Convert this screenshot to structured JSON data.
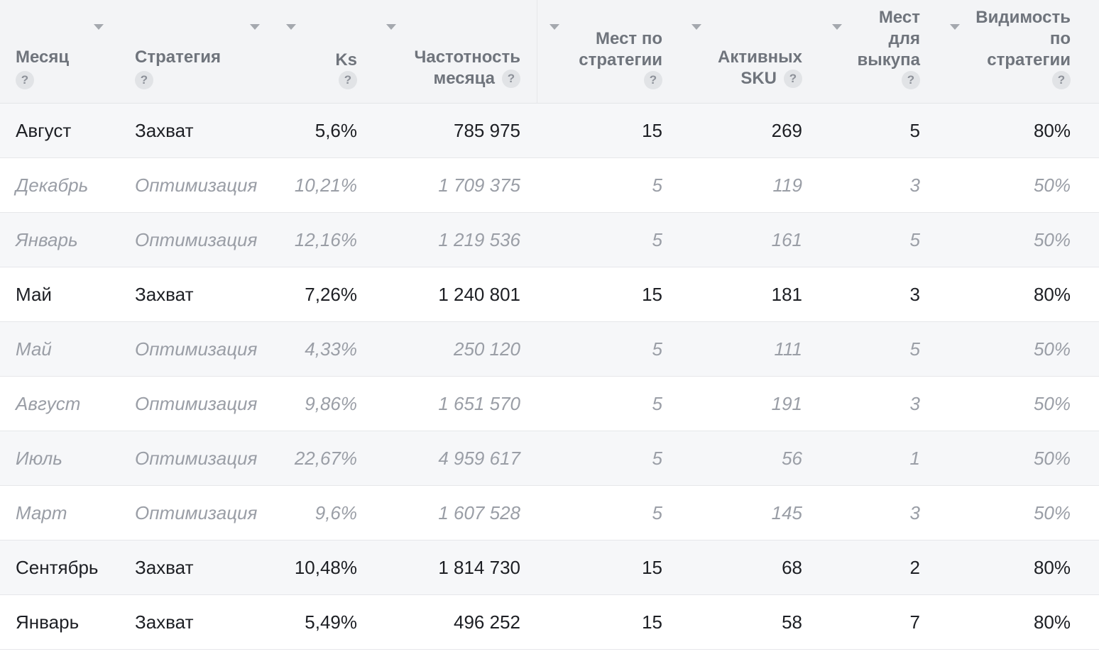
{
  "columns": [
    {
      "key": "month",
      "lines": [
        "Месяц"
      ],
      "help": "?",
      "align": "left"
    },
    {
      "key": "strategy",
      "lines": [
        "Стратегия"
      ],
      "help": "?",
      "align": "left"
    },
    {
      "key": "ks",
      "lines": [
        "Ks"
      ],
      "help": "?",
      "align": "right"
    },
    {
      "key": "frequency",
      "lines": [
        "Частотность",
        "месяца"
      ],
      "help": "?",
      "align": "right"
    },
    {
      "key": "places_by_strategy",
      "lines": [
        "Мест по",
        "стратегии"
      ],
      "help": "?",
      "align": "right"
    },
    {
      "key": "active_sku",
      "lines": [
        "Активных",
        "SKU"
      ],
      "help": "?",
      "align": "right"
    },
    {
      "key": "places_for_buyout",
      "lines": [
        "Мест",
        "для",
        "выкупа"
      ],
      "help": "?",
      "align": "right"
    },
    {
      "key": "visibility",
      "lines": [
        "Видимость",
        "по",
        "стратегии"
      ],
      "help": "?",
      "align": "right"
    }
  ],
  "rows": [
    {
      "month": "Август",
      "strategy": "Захват",
      "ks": "5,6%",
      "frequency": "785 975",
      "places_by_strategy": "15",
      "active_sku": "269",
      "places_for_buyout": "5",
      "visibility": "80%",
      "muted": false
    },
    {
      "month": "Декабрь",
      "strategy": "Оптимизация",
      "ks": "10,21%",
      "frequency": "1 709 375",
      "places_by_strategy": "5",
      "active_sku": "119",
      "places_for_buyout": "3",
      "visibility": "50%",
      "muted": true
    },
    {
      "month": "Январь",
      "strategy": "Оптимизация",
      "ks": "12,16%",
      "frequency": "1 219 536",
      "places_by_strategy": "5",
      "active_sku": "161",
      "places_for_buyout": "5",
      "visibility": "50%",
      "muted": true
    },
    {
      "month": "Май",
      "strategy": "Захват",
      "ks": "7,26%",
      "frequency": "1 240 801",
      "places_by_strategy": "15",
      "active_sku": "181",
      "places_for_buyout": "3",
      "visibility": "80%",
      "muted": false
    },
    {
      "month": "Май",
      "strategy": "Оптимизация",
      "ks": "4,33%",
      "frequency": "250 120",
      "places_by_strategy": "5",
      "active_sku": "111",
      "places_for_buyout": "5",
      "visibility": "50%",
      "muted": true
    },
    {
      "month": "Август",
      "strategy": "Оптимизация",
      "ks": "9,86%",
      "frequency": "1 651 570",
      "places_by_strategy": "5",
      "active_sku": "191",
      "places_for_buyout": "3",
      "visibility": "50%",
      "muted": true
    },
    {
      "month": "Июль",
      "strategy": "Оптимизация",
      "ks": "22,67%",
      "frequency": "4 959 617",
      "places_by_strategy": "5",
      "active_sku": "56",
      "places_for_buyout": "1",
      "visibility": "50%",
      "muted": true
    },
    {
      "month": "Март",
      "strategy": "Оптимизация",
      "ks": "9,6%",
      "frequency": "1 607 528",
      "places_by_strategy": "5",
      "active_sku": "145",
      "places_for_buyout": "3",
      "visibility": "50%",
      "muted": true
    },
    {
      "month": "Сентябрь",
      "strategy": "Захват",
      "ks": "10,48%",
      "frequency": "1 814 730",
      "places_by_strategy": "15",
      "active_sku": "68",
      "places_for_buyout": "2",
      "visibility": "80%",
      "muted": false
    },
    {
      "month": "Январь",
      "strategy": "Захват",
      "ks": "5,49%",
      "frequency": "496 252",
      "places_by_strategy": "15",
      "active_sku": "58",
      "places_for_buyout": "7",
      "visibility": "80%",
      "muted": false
    }
  ],
  "colors": {
    "header_bg": "#f3f4f6",
    "row_alt_bg": "#f6f7f9",
    "text_primary": "#1d1f24",
    "text_muted": "#9a9ea6",
    "header_text": "#6f747c"
  },
  "icons": {
    "help": "question-mark-circle-icon",
    "sort": "sort-caret-down-icon"
  }
}
